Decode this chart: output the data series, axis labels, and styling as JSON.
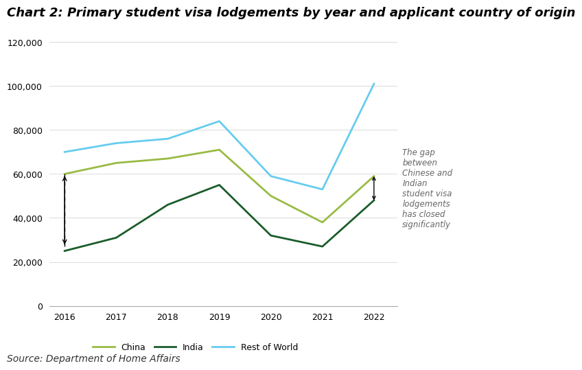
{
  "title": "Chart 2: Primary student visa lodgements by year and applicant country of origin",
  "source": "Source: Department of Home Affairs",
  "years": [
    2016,
    2017,
    2018,
    2019,
    2020,
    2021,
    2022
  ],
  "china": [
    60000,
    65000,
    67000,
    71000,
    50000,
    38000,
    59000
  ],
  "india": [
    25000,
    31000,
    46000,
    55000,
    32000,
    27000,
    48000
  ],
  "rest_of_world": [
    70000,
    74000,
    76000,
    84000,
    59000,
    53000,
    101000
  ],
  "china_color": "#99bb44",
  "india_color": "#1a5c2a",
  "row_color": "#66ccee",
  "ylim": [
    0,
    120000
  ],
  "yticks": [
    0,
    20000,
    40000,
    60000,
    80000,
    100000,
    120000
  ],
  "annotation_text": "The gap\nbetween\nChinese and\nIndian\nstudent visa\nlodgements\nhas closed\nsignificantly",
  "annotation_fontsize": 8.5,
  "title_fontsize": 13,
  "source_fontsize": 10
}
